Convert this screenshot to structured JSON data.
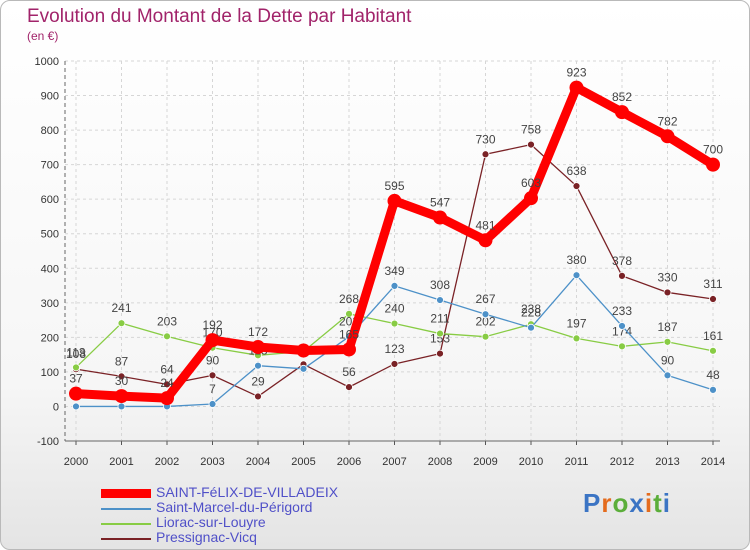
{
  "title": "Evolution du Montant de la Dette par Habitant",
  "subtitle": "(en €)",
  "logo": {
    "text": "Proxiti",
    "colors": [
      "#3b74c4",
      "#e46b1d",
      "#5bae3a",
      "#3b74c4",
      "#e46b1d",
      "#5bae3a",
      "#3b74c4"
    ]
  },
  "chart_data": {
    "type": "line",
    "x": [
      "2000",
      "2001",
      "2002",
      "2003",
      "2004",
      "2005",
      "2006",
      "2007",
      "2008",
      "2009",
      "2010",
      "2011",
      "2012",
      "2013",
      "2014"
    ],
    "ylim": [
      -100,
      1000
    ],
    "yticks": [
      "-100",
      "0",
      "100",
      "200",
      "300",
      "400",
      "500",
      "600",
      "700",
      "800",
      "900",
      "1000"
    ],
    "grid": true,
    "legend_position": "bottom-left",
    "series": [
      {
        "name": "Pressignac-Vicq",
        "color": "#7a2226",
        "values": [
          108,
          87,
          64,
          90,
          29,
          122,
          56,
          123,
          153,
          730,
          758,
          638,
          378,
          330,
          311
        ],
        "labels": [
          "108",
          "87",
          "64",
          "90",
          "29",
          "",
          "56",
          "123",
          "153",
          "730",
          "758",
          "638",
          "378",
          "330",
          "311"
        ]
      },
      {
        "name": "Liorac-sur-Louyre",
        "color": "#88cc44",
        "values": [
          113,
          241,
          203,
          170,
          148,
          159,
          268,
          240,
          211,
          202,
          238,
          197,
          174,
          187,
          161
        ],
        "labels": [
          "113",
          "241",
          "203",
          "170",
          "",
          "",
          "268",
          "240",
          "211",
          "202",
          "238",
          "197",
          "174",
          "187",
          "161"
        ]
      },
      {
        "name": "Saint-Marcel-du-Périgord",
        "color": "#4d91c8",
        "values": [
          0,
          0,
          0,
          7,
          118,
          109,
          202,
          349,
          308,
          267,
          228,
          380,
          233,
          90,
          48
        ],
        "labels": [
          "",
          "",
          "",
          "7",
          "118",
          "",
          "202",
          "349",
          "308",
          "267",
          "228",
          "380",
          "233",
          "90",
          "48"
        ]
      },
      {
        "name": "SAINT-FéLIX-DE-VILLADEIX",
        "color": "#ff0000",
        "values": [
          37,
          30,
          24,
          192,
          172,
          162,
          165,
          595,
          547,
          481,
          603,
          923,
          852,
          782,
          700
        ],
        "labels": [
          "37",
          "30",
          "24",
          "192",
          "172",
          "",
          "165",
          "595",
          "547",
          "481",
          "603",
          "923",
          "852",
          "782",
          "700"
        ]
      }
    ],
    "legend_order": [
      3,
      2,
      1,
      0
    ]
  }
}
